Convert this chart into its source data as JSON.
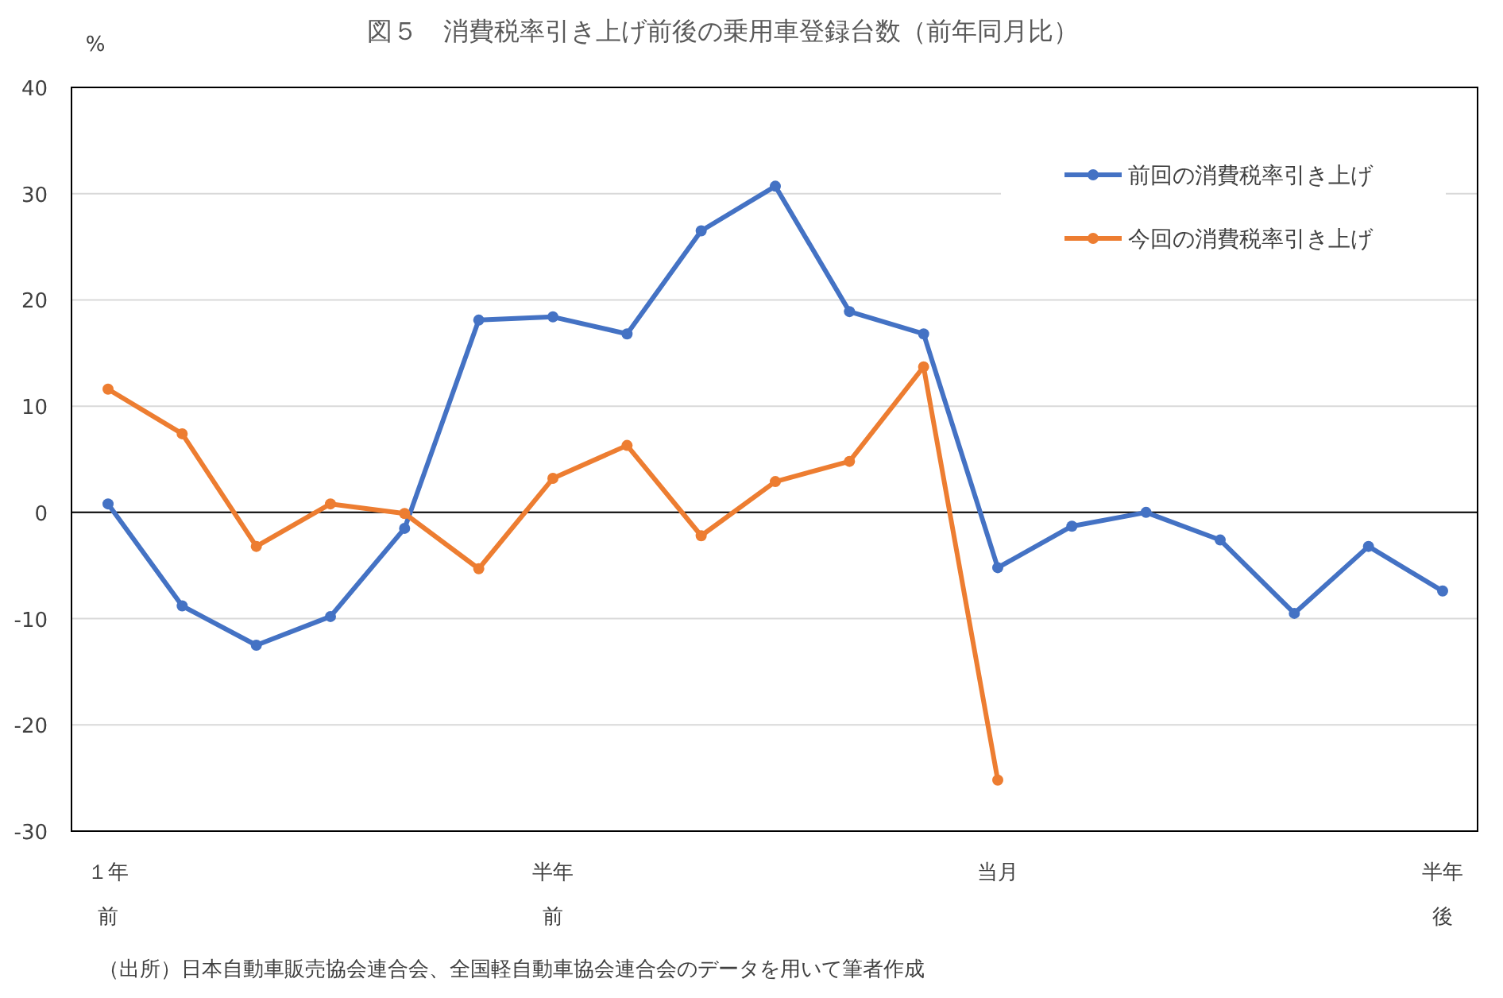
{
  "chart_data": {
    "type": "line",
    "title": "図５　消費税率引き上げ前後の乗用車登録台数（前年同月比）",
    "ylabel": "%",
    "categories": [
      "１年前",
      null,
      null,
      null,
      null,
      null,
      "半年前",
      null,
      null,
      null,
      null,
      null,
      "当月",
      null,
      null,
      null,
      null,
      null,
      "半年後"
    ],
    "series": [
      {
        "name": "前回の消費税率引き上げ",
        "color": "#4472c4",
        "values": [
          0.8,
          -8.8,
          -12.5,
          -9.8,
          -1.5,
          18.1,
          18.4,
          16.8,
          26.5,
          30.7,
          18.9,
          16.8,
          -5.2,
          -1.3,
          0,
          -2.6,
          -9.5,
          -3.2,
          -7.4
        ]
      },
      {
        "name": "今回の消費税率引き上げ",
        "color": "#ed7d31",
        "values": [
          11.6,
          7.4,
          -3.2,
          0.8,
          -0.1,
          -5.3,
          3.2,
          6.3,
          -2.2,
          2.9,
          4.8,
          13.7,
          -25.2,
          null,
          null,
          null,
          null,
          null,
          null
        ]
      }
    ],
    "ylim": [
      -30,
      40
    ],
    "yticks": [
      -30,
      -20,
      -10,
      0,
      10,
      20,
      30,
      40
    ],
    "ref_lines": [
      {
        "axis": "y",
        "value": 0,
        "color": "#000000"
      }
    ],
    "grid": "y",
    "legend": "top right",
    "marker": "circle",
    "line_style": "solid",
    "annotations": [
      "（出所）日本自動車販売協会連合会、全国軽自動車協会連合会のデータを用いて筆者作成"
    ]
  }
}
